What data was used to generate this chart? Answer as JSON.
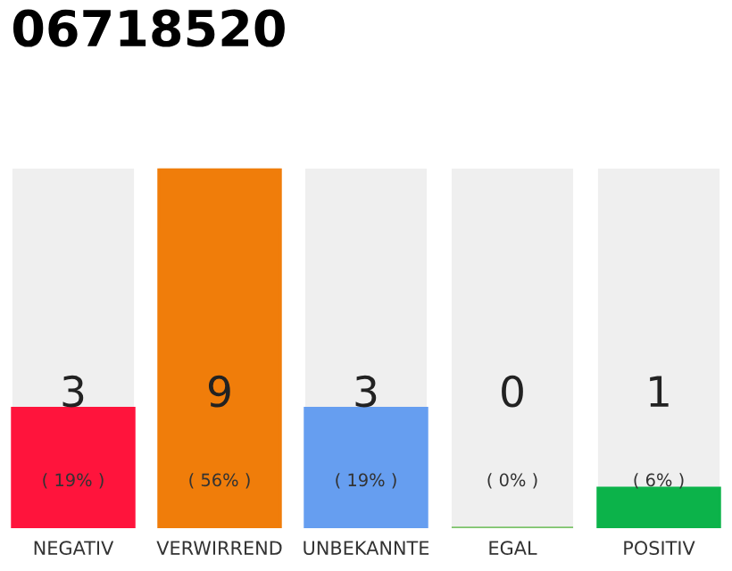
{
  "chart_data": {
    "type": "bar",
    "title": "06718520",
    "categories": [
      "NEGATIV",
      "VERWIRREND",
      "UNBEKANNTE",
      "EGAL",
      "POSITIV"
    ],
    "values": [
      3,
      9,
      3,
      0,
      1
    ],
    "colors": [
      "#ff143c",
      "#f07d0a",
      "#669ef0",
      "#7dc36b",
      "#0cb34a"
    ],
    "ylim": [
      0,
      9
    ],
    "tick_labels": "x",
    "grid": false,
    "legend": false,
    "data_labels": true,
    "annotations": [
      "( 19% )",
      "( 56% )",
      "( 19% )",
      "( 0% )",
      "( 6% )"
    ]
  }
}
